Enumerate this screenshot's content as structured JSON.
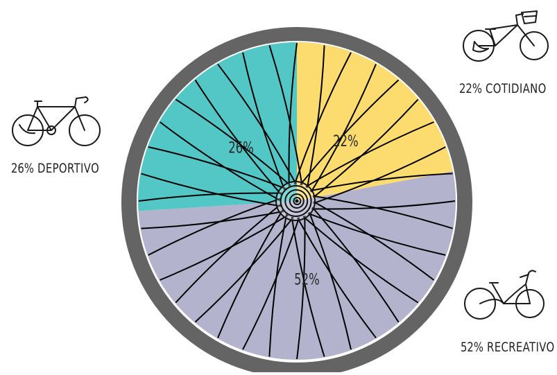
{
  "chart_data": {
    "type": "pie",
    "title": "",
    "slices": [
      {
        "label": "cotidiano",
        "value": 22,
        "color": "#fcdc6e",
        "data_label": "22%",
        "legend_pct": "22%",
        "legend_name": "COTIDIANO"
      },
      {
        "label": "recreativo",
        "value": 52,
        "color": "#b3b3cd",
        "data_label": "52%",
        "legend_pct": "52%",
        "legend_name": "RECREATIVO"
      },
      {
        "label": "deportivo",
        "value": 26,
        "color": "#53c7c6",
        "data_label": "26%",
        "legend_pct": "26%",
        "legend_name": "DEPORTIVO"
      }
    ],
    "start_angle_deg": 0,
    "direction": "clockwise",
    "tire_color": "#646464",
    "spoke_color": "#000000",
    "legend": "around-wheel",
    "icons": {
      "cotidiano": "city-bike-with-basket-icon",
      "recreativo": "cruiser-bike-icon",
      "deportivo": "road-bike-icon"
    }
  }
}
